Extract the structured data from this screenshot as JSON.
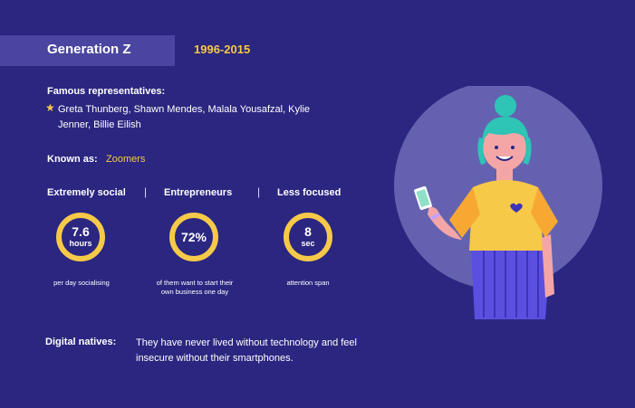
{
  "header": {
    "title": "Generation Z",
    "years": "1996-2015"
  },
  "famous": {
    "label": "Famous representatives:",
    "names": "Greta Thunberg, Shawn Mendes, Malala Yousafzal, Kylie Jenner, Billie Eilish"
  },
  "known_as": {
    "label": "Known as:",
    "value": "Zoomers"
  },
  "traits": [
    {
      "label": "Extremely social"
    },
    {
      "label": "Entrepreneurs"
    },
    {
      "label": "Less focused"
    }
  ],
  "stats": [
    {
      "value": "7.6",
      "unit": "hours",
      "caption": "per day socialising"
    },
    {
      "value": "72%",
      "unit": "",
      "caption": "of them want to start their own business one day"
    },
    {
      "value": "8",
      "unit": "sec",
      "caption": "attention span"
    }
  ],
  "digital_natives": {
    "label": "Digital natives:",
    "text": "They have never lived without technology and feel insecure without their smartphones."
  },
  "colors": {
    "background": "#2b2680",
    "band": "#4a45a0",
    "accent": "#f7c948",
    "circle": "#6462b0"
  },
  "icons": {
    "bullet": "star-icon"
  }
}
